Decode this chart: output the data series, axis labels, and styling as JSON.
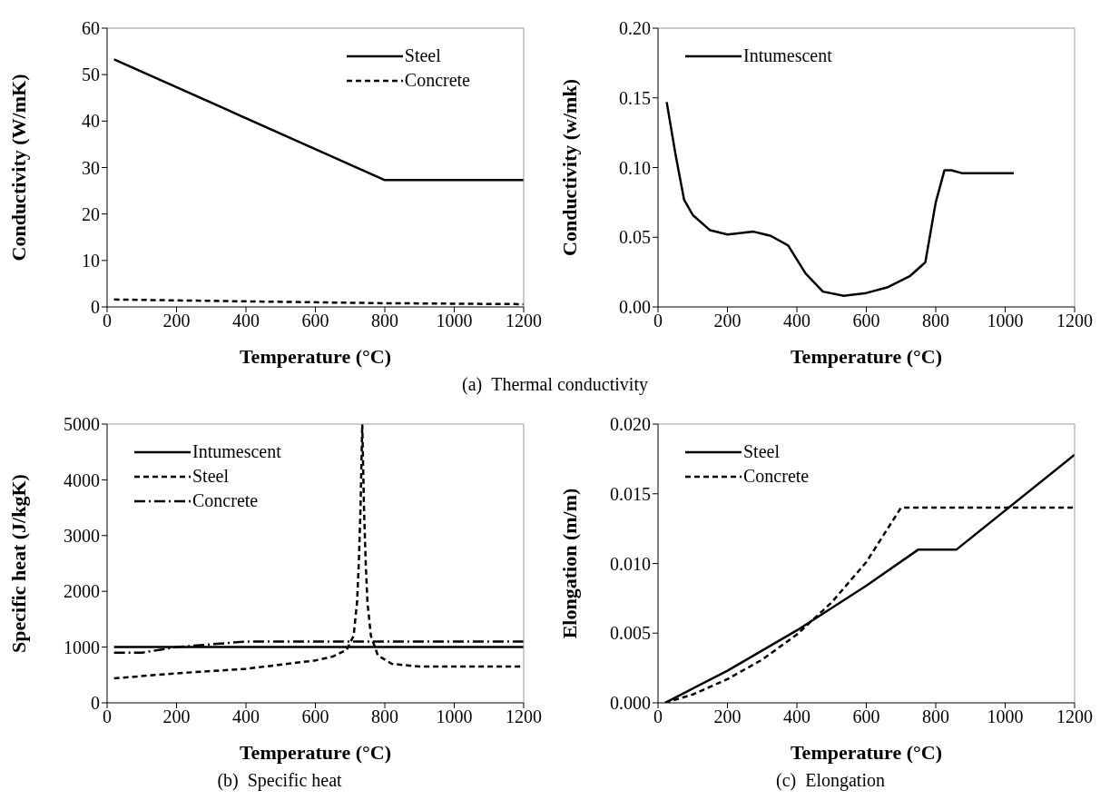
{
  "chart_data": [
    {
      "type": "line",
      "xlabel": "Temperature (°C)",
      "ylabel": "Conductivity (W/mK)",
      "xlim": [
        0,
        1200
      ],
      "xticks": [
        0,
        200,
        400,
        600,
        800,
        1000,
        1200
      ],
      "ylim": [
        0,
        60
      ],
      "yticks": [
        0,
        10,
        20,
        30,
        40,
        50,
        60
      ],
      "legend": "top right",
      "grid": false,
      "marker": "none",
      "annotations": [
        "(a)  Thermal conductivity"
      ],
      "series": [
        {
          "name": "Steel",
          "color": "#000000",
          "line_style": "solid",
          "x": [
            20,
            800,
            1200
          ],
          "values": [
            53.3,
            27.3,
            27.3
          ]
        },
        {
          "name": "Concrete",
          "color": "#000000",
          "line_style": "dashed",
          "x": [
            20,
            400,
            800,
            1200
          ],
          "values": [
            1.6,
            1.2,
            0.8,
            0.6
          ]
        }
      ]
    },
    {
      "type": "line",
      "xlabel": "Temperature (°C)",
      "ylabel": "Conductivity (w/mk)",
      "xlim": [
        0,
        1200
      ],
      "xticks": [
        0,
        200,
        400,
        600,
        800,
        1000,
        1200
      ],
      "ylim": [
        0,
        0.2
      ],
      "yticks": [
        {
          "value": 0,
          "label": "0.00"
        },
        {
          "value": 0.05,
          "label": "0.05"
        },
        {
          "value": 0.1,
          "label": "0.10"
        },
        {
          "value": 0.15,
          "label": "0.15"
        },
        {
          "value": 0.2,
          "label": "0.20"
        }
      ],
      "legend": "top left",
      "grid": false,
      "marker": "none",
      "series": [
        {
          "name": "Intumescent",
          "color": "#000000",
          "line_style": "solid",
          "x": [
            25,
            50,
            75,
            100,
            150,
            200,
            275,
            325,
            375,
            425,
            475,
            535,
            600,
            660,
            725,
            770,
            800,
            825,
            845,
            875,
            1025
          ],
          "values": [
            0.147,
            0.11,
            0.077,
            0.066,
            0.055,
            0.052,
            0.054,
            0.051,
            0.044,
            0.024,
            0.011,
            0.008,
            0.01,
            0.014,
            0.022,
            0.032,
            0.075,
            0.098,
            0.098,
            0.096,
            0.096
          ]
        }
      ]
    },
    {
      "type": "line",
      "xlabel": "Temperature (°C)",
      "ylabel": "Specific heat (J/kgK)",
      "xlim": [
        0,
        1200
      ],
      "xticks": [
        0,
        200,
        400,
        600,
        800,
        1000,
        1200
      ],
      "ylim": [
        0,
        5000
      ],
      "yticks": [
        0,
        1000,
        2000,
        3000,
        4000,
        5000
      ],
      "legend": "top left",
      "grid": false,
      "marker": "none",
      "annotations": [
        "(b)  Specific heat"
      ],
      "series": [
        {
          "name": "Intumescent",
          "color": "#000000",
          "line_style": "solid",
          "x": [
            20,
            1200
          ],
          "values": [
            1000,
            1000
          ]
        },
        {
          "name": "Steel",
          "color": "#000000",
          "line_style": "dashed",
          "x": [
            20,
            200,
            400,
            600,
            650,
            690,
            710,
            720,
            725,
            730,
            735,
            740,
            745,
            750,
            760,
            780,
            820,
            900,
            1200
          ],
          "values": [
            440,
            530,
            610,
            760,
            830,
            950,
            1200,
            1800,
            2500,
            3500,
            5000,
            3500,
            2500,
            1800,
            1200,
            850,
            700,
            650,
            650
          ]
        },
        {
          "name": "Concrete",
          "color": "#000000",
          "line_style": "dashdot",
          "x": [
            20,
            100,
            200,
            400,
            1200
          ],
          "values": [
            900,
            900,
            1000,
            1100,
            1100
          ]
        }
      ]
    },
    {
      "type": "line",
      "xlabel": "Temperature (°C)",
      "ylabel": "Elongation (m/m)",
      "xlim": [
        0,
        1200
      ],
      "xticks": [
        0,
        200,
        400,
        600,
        800,
        1000,
        1200
      ],
      "ylim": [
        0,
        0.02
      ],
      "yticks": [
        {
          "value": 0,
          "label": "0.000"
        },
        {
          "value": 0.005,
          "label": "0.005"
        },
        {
          "value": 0.01,
          "label": "0.010"
        },
        {
          "value": 0.015,
          "label": "0.015"
        },
        {
          "value": 0.02,
          "label": "0.020"
        }
      ],
      "legend": "top left",
      "grid": false,
      "marker": "none",
      "annotations": [
        "(c)  Elongation"
      ],
      "series": [
        {
          "name": "Steel",
          "color": "#000000",
          "line_style": "solid",
          "x": [
            20,
            200,
            400,
            600,
            750,
            860,
            1200
          ],
          "values": [
            0,
            0.0023,
            0.0052,
            0.0084,
            0.011,
            0.011,
            0.0178
          ]
        },
        {
          "name": "Concrete",
          "color": "#000000",
          "line_style": "dashed",
          "x": [
            20,
            100,
            200,
            300,
            400,
            500,
            600,
            700,
            1200
          ],
          "values": [
            0,
            0.0006,
            0.0017,
            0.0031,
            0.0049,
            0.0072,
            0.0101,
            0.014,
            0.014
          ]
        }
      ]
    }
  ]
}
